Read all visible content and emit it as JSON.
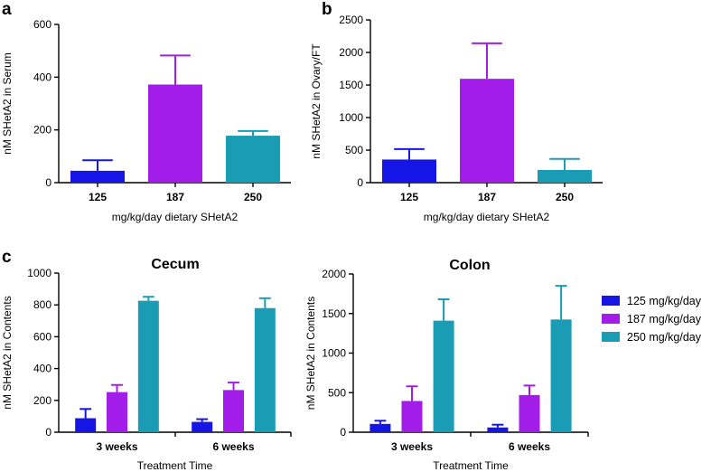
{
  "chart_data": [
    {
      "panel": "a",
      "type": "bar",
      "title": "",
      "categories": [
        "125",
        "187",
        "250"
      ],
      "values": [
        45,
        372,
        178
      ],
      "errors": [
        40,
        110,
        18
      ],
      "colors": [
        "#1515E6",
        "#A21EE8",
        "#1A9DB4"
      ],
      "xlabel": "mg/kg/day dietary SHetA2",
      "ylabel": "nM SHetA2 in Serum",
      "ylim": [
        0,
        600
      ],
      "yticks": [
        0,
        200,
        400,
        600
      ]
    },
    {
      "panel": "b",
      "type": "bar",
      "title": "",
      "categories": [
        "125",
        "187",
        "250"
      ],
      "values": [
        355,
        1595,
        195
      ],
      "errors": [
        160,
        545,
        170
      ],
      "colors": [
        "#1515E6",
        "#A21EE8",
        "#1A9DB4"
      ],
      "xlabel": "mg/kg/day dietary SHetA2",
      "ylabel": "nM SHetA2 in Ovary/FT",
      "ylim": [
        0,
        2500
      ],
      "yticks": [
        0,
        500,
        1000,
        1500,
        2000,
        2500
      ]
    },
    {
      "panel": "c",
      "type": "bar",
      "title": "Cecum",
      "categories": [
        "3 weeks",
        "6 weeks"
      ],
      "series": [
        {
          "name": "125 mg/kg/day",
          "color": "#1515E6",
          "values": [
            88,
            65
          ],
          "errors": [
            58,
            17
          ]
        },
        {
          "name": "187 mg/kg/day",
          "color": "#A21EE8",
          "values": [
            252,
            265
          ],
          "errors": [
            45,
            47
          ]
        },
        {
          "name": "250 mg/kg/day",
          "color": "#1A9DB4",
          "values": [
            826,
            780
          ],
          "errors": [
            25,
            62
          ]
        }
      ],
      "xlabel": "Treatment Time",
      "ylabel": "nM SHetA2 in Contents",
      "ylim": [
        0,
        1000
      ],
      "yticks": [
        0,
        200,
        400,
        600,
        800,
        1000
      ]
    },
    {
      "panel": "",
      "type": "bar",
      "title": "Colon",
      "categories": [
        "3 weeks",
        "6 weeks"
      ],
      "series": [
        {
          "name": "125 mg/kg/day",
          "color": "#1515E6",
          "values": [
            105,
            60
          ],
          "errors": [
            40,
            35
          ]
        },
        {
          "name": "187 mg/kg/day",
          "color": "#A21EE8",
          "values": [
            395,
            470
          ],
          "errors": [
            185,
            120
          ]
        },
        {
          "name": "250 mg/kg/day",
          "color": "#1A9DB4",
          "values": [
            1410,
            1425
          ],
          "errors": [
            270,
            425
          ]
        }
      ],
      "xlabel": "Treatment Time",
      "ylabel": "nM SHetA2 in Contents",
      "ylim": [
        0,
        2000
      ],
      "yticks": [
        0,
        500,
        1000,
        1500,
        2000
      ]
    }
  ],
  "legend": {
    "placement": "right",
    "items": [
      {
        "label": "125 mg/kg/day",
        "color": "#1515E6"
      },
      {
        "label": "187 mg/kg/day",
        "color": "#A21EE8"
      },
      {
        "label": "250 mg/kg/day",
        "color": "#1A9DB4"
      }
    ]
  }
}
